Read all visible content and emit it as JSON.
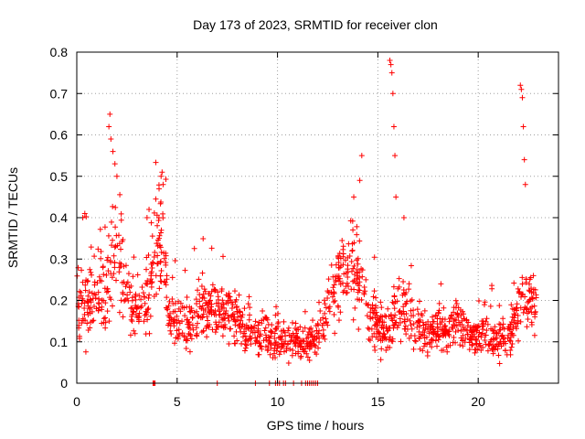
{
  "chart_data": {
    "type": "scatter",
    "title": "Day 173 of 2023, SRMTID for receiver clon",
    "xlabel": "GPS time / hours",
    "ylabel": "SRMTID / TECUs",
    "xlim": [
      0,
      24
    ],
    "ylim": [
      0,
      0.8
    ],
    "xticks": [
      0,
      5,
      10,
      15,
      20
    ],
    "yticks": [
      0,
      0.1,
      0.2,
      0.3,
      0.4,
      0.5,
      0.6,
      0.7,
      0.8
    ],
    "xtick_labels": [
      "0",
      "5",
      "10",
      "15",
      "20"
    ],
    "ytick_labels": [
      "0",
      "0.1",
      "0.2",
      "0.3",
      "0.4",
      "0.5",
      "0.6",
      "0.7",
      "0.8"
    ],
    "grid": true,
    "marker": "plus",
    "color": "#ff0000",
    "series": [
      {
        "name": "SRMTID",
        "envelope": [
          [
            0.0,
            0.2,
            0.08
          ],
          [
            0.5,
            0.19,
            0.07
          ],
          [
            1.0,
            0.21,
            0.07
          ],
          [
            1.5,
            0.2,
            0.08
          ],
          [
            1.8,
            0.33,
            0.12
          ],
          [
            2.2,
            0.29,
            0.09
          ],
          [
            2.6,
            0.2,
            0.06
          ],
          [
            3.0,
            0.16,
            0.05
          ],
          [
            3.5,
            0.22,
            0.09
          ],
          [
            4.0,
            0.32,
            0.1
          ],
          [
            4.3,
            0.36,
            0.1
          ],
          [
            4.6,
            0.17,
            0.05
          ],
          [
            5.0,
            0.15,
            0.05
          ],
          [
            5.5,
            0.14,
            0.05
          ],
          [
            6.0,
            0.16,
            0.06
          ],
          [
            6.5,
            0.19,
            0.06
          ],
          [
            7.0,
            0.18,
            0.05
          ],
          [
            7.5,
            0.17,
            0.05
          ],
          [
            8.0,
            0.15,
            0.05
          ],
          [
            8.5,
            0.13,
            0.04
          ],
          [
            9.0,
            0.12,
            0.04
          ],
          [
            9.5,
            0.12,
            0.04
          ],
          [
            10.0,
            0.11,
            0.04
          ],
          [
            10.5,
            0.11,
            0.04
          ],
          [
            11.0,
            0.1,
            0.03
          ],
          [
            11.5,
            0.09,
            0.03
          ],
          [
            12.0,
            0.12,
            0.04
          ],
          [
            12.5,
            0.18,
            0.06
          ],
          [
            13.0,
            0.24,
            0.07
          ],
          [
            13.5,
            0.28,
            0.08
          ],
          [
            14.0,
            0.26,
            0.08
          ],
          [
            14.5,
            0.18,
            0.06
          ],
          [
            15.0,
            0.14,
            0.05
          ],
          [
            15.5,
            0.12,
            0.05
          ],
          [
            16.0,
            0.19,
            0.07
          ],
          [
            16.5,
            0.17,
            0.06
          ],
          [
            17.0,
            0.14,
            0.05
          ],
          [
            17.5,
            0.11,
            0.04
          ],
          [
            18.0,
            0.14,
            0.05
          ],
          [
            18.5,
            0.12,
            0.04
          ],
          [
            19.0,
            0.15,
            0.05
          ],
          [
            19.5,
            0.12,
            0.04
          ],
          [
            20.0,
            0.11,
            0.04
          ],
          [
            20.5,
            0.12,
            0.04
          ],
          [
            21.0,
            0.11,
            0.04
          ],
          [
            21.5,
            0.1,
            0.04
          ],
          [
            22.0,
            0.18,
            0.07
          ],
          [
            22.5,
            0.2,
            0.06
          ],
          [
            22.9,
            0.19,
            0.05
          ]
        ],
        "spikes": [
          [
            0.3,
            0.4
          ],
          [
            0.4,
            0.41
          ],
          [
            1.6,
            0.62
          ],
          [
            1.65,
            0.65
          ],
          [
            1.7,
            0.59
          ],
          [
            1.8,
            0.56
          ],
          [
            1.9,
            0.53
          ],
          [
            2.0,
            0.5
          ],
          [
            3.5,
            0.4
          ],
          [
            3.6,
            0.42
          ],
          [
            4.1,
            0.47
          ],
          [
            4.2,
            0.5
          ],
          [
            4.25,
            0.51
          ],
          [
            4.3,
            0.48
          ],
          [
            13.8,
            0.45
          ],
          [
            14.1,
            0.49
          ],
          [
            14.2,
            0.55
          ],
          [
            15.6,
            0.78
          ],
          [
            15.65,
            0.77
          ],
          [
            15.7,
            0.75
          ],
          [
            15.75,
            0.7
          ],
          [
            15.8,
            0.62
          ],
          [
            15.85,
            0.55
          ],
          [
            15.9,
            0.45
          ],
          [
            16.3,
            0.4
          ],
          [
            22.1,
            0.72
          ],
          [
            22.15,
            0.71
          ],
          [
            22.2,
            0.69
          ],
          [
            22.25,
            0.62
          ],
          [
            22.3,
            0.54
          ],
          [
            22.35,
            0.48
          ]
        ],
        "zeros": [
          3.8,
          3.85,
          3.9,
          7.0,
          8.9,
          9.6,
          9.9,
          10.0,
          10.1,
          10.3,
          10.4,
          10.8,
          11.2,
          11.4,
          11.5,
          11.6,
          11.7,
          11.8,
          11.9,
          12.0
        ]
      }
    ]
  }
}
